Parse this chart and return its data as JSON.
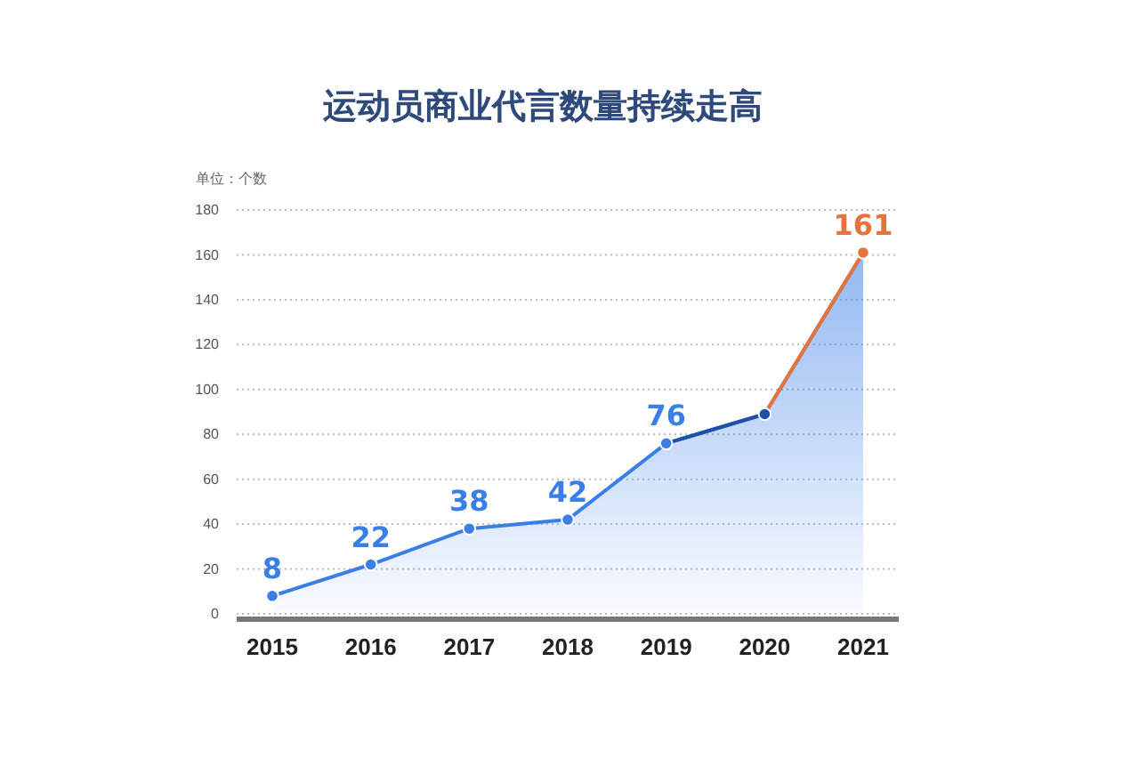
{
  "chart_data": {
    "type": "area",
    "title": "运动员商业代言数量持续走高",
    "ylabel": "单位：个数",
    "categories": [
      "2015",
      "2016",
      "2017",
      "2018",
      "2019",
      "2020",
      "2021"
    ],
    "values": [
      8,
      22,
      38,
      42,
      76,
      89,
      161
    ],
    "value_labels": [
      "8",
      "22",
      "38",
      "42",
      "76",
      null,
      "161"
    ],
    "colors": [
      "#3a7ee8",
      "#3a7ee8",
      "#3a7ee8",
      "#3a7ee8",
      "#3a7ee8",
      "#1f4fa8",
      "#e8733a"
    ],
    "ylim": [
      0,
      180
    ],
    "yticks": [
      0,
      20,
      40,
      60,
      80,
      100,
      120,
      140,
      160,
      180
    ],
    "grid": "y",
    "marker": "circle"
  }
}
